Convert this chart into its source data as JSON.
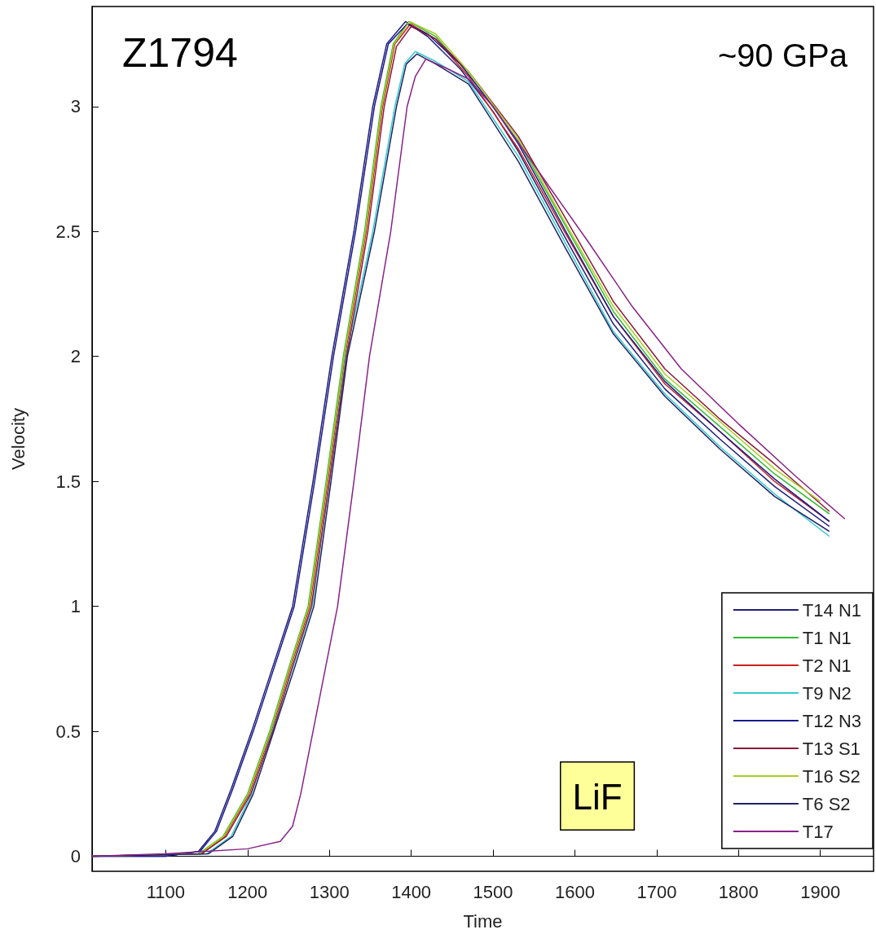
{
  "chart_data": {
    "type": "line",
    "xlabel": "Time",
    "ylabel": "Velocity",
    "annotations": [
      "Z1794",
      "~90 GPa",
      "LiF"
    ],
    "xlim": [
      1010,
      1965
    ],
    "ylim": [
      -0.06,
      3.4
    ],
    "xticks": [
      1100,
      1200,
      1300,
      1400,
      1500,
      1600,
      1700,
      1800,
      1900
    ],
    "yticks": [
      0,
      0.5,
      1,
      1.5,
      2,
      2.5,
      3
    ],
    "legend": "bottom right",
    "marker": "none",
    "line_style": "solid",
    "series": [
      {
        "name": "T14 N1",
        "color": "#1f1f7a",
        "x": [
          1010,
          1100,
          1140,
          1160,
          1180,
          1205,
          1230,
          1255,
          1280,
          1303,
          1330,
          1353,
          1370,
          1393,
          1420,
          1460,
          1500,
          1531,
          1589,
          1647,
          1710,
          1777,
          1844,
          1911
        ],
        "values": [
          0,
          0,
          0.02,
          0.1,
          0.27,
          0.5,
          0.75,
          1.0,
          1.5,
          2.0,
          2.5,
          3.0,
          3.25,
          3.34,
          3.28,
          3.15,
          2.98,
          2.82,
          2.47,
          2.13,
          1.87,
          1.67,
          1.48,
          1.32
        ]
      },
      {
        "name": "T1 N1",
        "color": "#33bb33",
        "x": [
          1010,
          1140,
          1170,
          1200,
          1227,
          1250,
          1274,
          1296,
          1317,
          1343,
          1363,
          1378,
          1397,
          1430,
          1470,
          1531,
          1589,
          1647,
          1710,
          1777,
          1844,
          1911
        ],
        "values": [
          0,
          0.01,
          0.08,
          0.25,
          0.5,
          0.75,
          1.0,
          1.5,
          2.0,
          2.5,
          3.0,
          3.25,
          3.34,
          3.28,
          3.13,
          2.86,
          2.52,
          2.18,
          1.91,
          1.72,
          1.53,
          1.37
        ]
      },
      {
        "name": "T2 N1",
        "color": "#cc2222",
        "x": [
          1010,
          1142,
          1172,
          1202,
          1229,
          1252,
          1276,
          1298,
          1319,
          1345,
          1365,
          1380,
          1399,
          1430,
          1470,
          1531,
          1589,
          1647,
          1710,
          1777,
          1844,
          1911
        ],
        "values": [
          0,
          0.01,
          0.08,
          0.25,
          0.5,
          0.75,
          1.0,
          1.5,
          2.0,
          2.5,
          3.0,
          3.25,
          3.33,
          3.27,
          3.12,
          2.83,
          2.49,
          2.16,
          1.89,
          1.7,
          1.5,
          1.34
        ]
      },
      {
        "name": "T9 N2",
        "color": "#33cccc",
        "x": [
          1010,
          1150,
          1180,
          1205,
          1230,
          1255,
          1279,
          1300,
          1320,
          1353,
          1380,
          1392,
          1405,
          1430,
          1470,
          1531,
          1589,
          1647,
          1710,
          1777,
          1844,
          1911
        ],
        "values": [
          0,
          0.01,
          0.08,
          0.25,
          0.5,
          0.75,
          1.0,
          1.5,
          2.0,
          2.5,
          3.0,
          3.17,
          3.22,
          3.18,
          3.1,
          2.8,
          2.45,
          2.1,
          1.85,
          1.64,
          1.45,
          1.28
        ]
      },
      {
        "name": "T12 N3",
        "color": "#1a1a8c",
        "x": [
          1010,
          1100,
          1142,
          1162,
          1182,
          1207,
          1232,
          1257,
          1282,
          1305,
          1332,
          1355,
          1372,
          1395,
          1420,
          1460,
          1500,
          1531,
          1589,
          1647,
          1710,
          1777,
          1844,
          1911
        ],
        "values": [
          0,
          0,
          0.02,
          0.1,
          0.27,
          0.5,
          0.75,
          1.0,
          1.5,
          2.0,
          2.5,
          3.0,
          3.25,
          3.33,
          3.29,
          3.17,
          3.0,
          2.85,
          2.5,
          2.16,
          1.9,
          1.7,
          1.51,
          1.34
        ]
      },
      {
        "name": "T13 S1",
        "color": "#8b1a3a",
        "x": [
          1010,
          1144,
          1174,
          1204,
          1231,
          1254,
          1278,
          1300,
          1321,
          1347,
          1367,
          1382,
          1400,
          1430,
          1470,
          1531,
          1589,
          1647,
          1710,
          1777,
          1844,
          1911
        ],
        "values": [
          0,
          0.01,
          0.08,
          0.25,
          0.5,
          0.75,
          1.0,
          1.5,
          2.0,
          2.5,
          3.0,
          3.24,
          3.32,
          3.27,
          3.14,
          2.88,
          2.55,
          2.22,
          1.95,
          1.75,
          1.57,
          1.38
        ]
      },
      {
        "name": "T16 S2",
        "color": "#aacc22",
        "x": [
          1010,
          1141,
          1171,
          1201,
          1228,
          1251,
          1275,
          1297,
          1318,
          1344,
          1364,
          1379,
          1398,
          1430,
          1470,
          1531,
          1589,
          1647,
          1710,
          1777,
          1844,
          1900
        ],
        "values": [
          0,
          0.01,
          0.08,
          0.25,
          0.5,
          0.75,
          1.0,
          1.5,
          2.0,
          2.5,
          3.0,
          3.25,
          3.34,
          3.29,
          3.14,
          2.87,
          2.53,
          2.2,
          1.93,
          1.74,
          1.55,
          1.42
        ]
      },
      {
        "name": "T6 S2",
        "color": "#222266",
        "x": [
          1010,
          1152,
          1182,
          1207,
          1232,
          1257,
          1281,
          1302,
          1322,
          1355,
          1382,
          1394,
          1407,
          1430,
          1470,
          1531,
          1589,
          1647,
          1710,
          1777,
          1844,
          1911
        ],
        "values": [
          0,
          0.01,
          0.08,
          0.25,
          0.5,
          0.75,
          1.0,
          1.5,
          2.0,
          2.5,
          3.0,
          3.17,
          3.21,
          3.17,
          3.09,
          2.78,
          2.43,
          2.09,
          1.84,
          1.63,
          1.44,
          1.3
        ]
      },
      {
        "name": "T17",
        "color": "#882288",
        "x": [
          1010,
          1100,
          1200,
          1240,
          1255,
          1265,
          1280,
          1295,
          1310,
          1330,
          1349,
          1375,
          1395,
          1405,
          1418,
          1445,
          1470,
          1500,
          1560,
          1616,
          1670,
          1730,
          1800,
          1870,
          1930
        ],
        "values": [
          0,
          0.01,
          0.03,
          0.06,
          0.12,
          0.25,
          0.5,
          0.75,
          1.0,
          1.5,
          2.0,
          2.5,
          3.0,
          3.12,
          3.19,
          3.15,
          3.11,
          3.0,
          2.72,
          2.46,
          2.2,
          1.95,
          1.73,
          1.52,
          1.35
        ]
      }
    ]
  }
}
